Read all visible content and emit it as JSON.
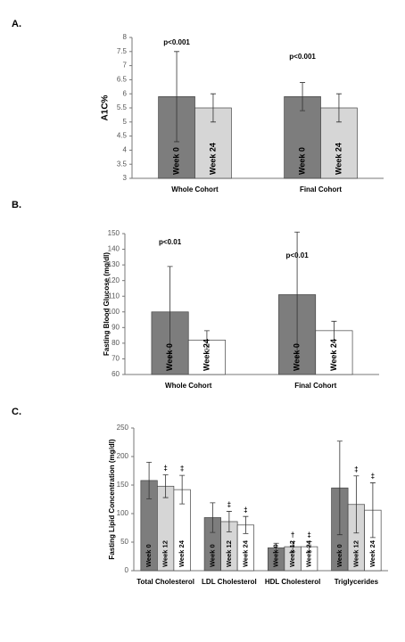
{
  "chart_data": [
    {
      "type": "bar",
      "panel_label": "A.",
      "ylabel": "A1C%",
      "categories": [
        "Whole Cohort",
        "Final Cohort"
      ],
      "series": [
        {
          "name": "Week 0",
          "color": "#7d7d7d",
          "values": [
            5.9,
            5.9
          ],
          "errors": [
            1.6,
            0.5
          ]
        },
        {
          "name": "Week 24",
          "color": "#d6d6d6",
          "values": [
            5.5,
            5.5
          ],
          "errors": [
            0.5,
            0.5
          ]
        }
      ],
      "annotations": [
        "p<0.001",
        "p<0.001"
      ],
      "ylim": [
        3,
        8
      ],
      "yticks": [
        3,
        3.5,
        4,
        4.5,
        5,
        5.5,
        6,
        6.5,
        7,
        7.5,
        8
      ],
      "grid": false
    },
    {
      "type": "bar",
      "panel_label": "B.",
      "ylabel": "Fasting Blood Glucose (mg/dl)",
      "categories": [
        "Whole Cohort",
        "Final Cohort"
      ],
      "series": [
        {
          "name": "Week 0",
          "color": "#7d7d7d",
          "values": [
            100,
            111
          ],
          "errors": [
            29,
            40
          ]
        },
        {
          "name": "Week 24",
          "color": "#ffffff",
          "values": [
            82,
            88
          ],
          "errors": [
            6,
            6
          ]
        }
      ],
      "annotations": [
        "p<0.01",
        "p<0.01"
      ],
      "ylim": [
        60,
        150
      ],
      "yticks": [
        60,
        70,
        80,
        90,
        100,
        110,
        120,
        130,
        140,
        150
      ],
      "grid": false
    },
    {
      "type": "bar",
      "panel_label": "C.",
      "ylabel": "Fasting Lipid Concentration (mg/dl)",
      "categories": [
        "Total Cholesterol",
        "LDL Cholesterol",
        "HDL Cholesterol",
        "Triglycerides"
      ],
      "series": [
        {
          "name": "Week 0",
          "color": "#7d7d7d",
          "values": [
            158,
            93,
            40,
            145
          ],
          "errors": [
            32,
            26,
            8,
            82
          ]
        },
        {
          "name": "Week 12",
          "color": "#d6d6d6",
          "values": [
            148,
            86,
            42,
            116
          ],
          "errors": [
            20,
            18,
            9,
            50
          ],
          "symbols": [
            "‡",
            "‡",
            "†",
            "‡"
          ]
        },
        {
          "name": "Week 24",
          "color": "#ffffff",
          "values": [
            142,
            80,
            42,
            106
          ],
          "errors": [
            25,
            15,
            9,
            48
          ],
          "symbols": [
            "‡",
            "‡",
            "‡",
            "‡"
          ]
        }
      ],
      "ylim": [
        0,
        250
      ],
      "yticks": [
        0,
        50,
        100,
        150,
        200,
        250
      ],
      "grid": false
    }
  ]
}
